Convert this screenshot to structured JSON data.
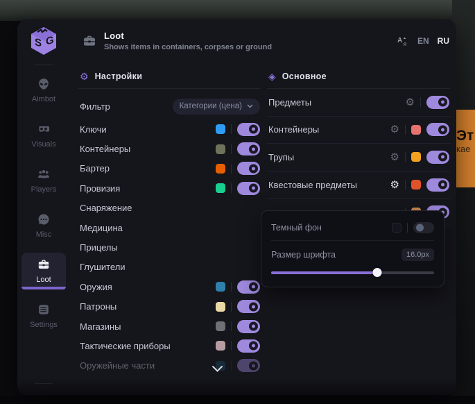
{
  "colors": {
    "accent": "#8d74da",
    "toggle_on": "#9e89dd",
    "panel_bg": "#15151c",
    "banner_orange": "#d8822d"
  },
  "scene": {
    "banner_line1": "Эт",
    "banner_line2": "кае"
  },
  "sidebar": {
    "items": [
      {
        "label": "Aimbot",
        "icon": "alien-icon",
        "active": false
      },
      {
        "label": "Visuals",
        "icon": "goggles-icon",
        "active": false
      },
      {
        "label": "Players",
        "icon": "people-icon",
        "active": false
      },
      {
        "label": "Misc",
        "icon": "chat-dots-icon",
        "active": false
      },
      {
        "label": "Loot",
        "icon": "briefcase-icon",
        "active": true
      },
      {
        "label": "Settings",
        "icon": "list-box-icon",
        "active": false
      }
    ]
  },
  "header": {
    "title": "Loot",
    "subtitle": "Shows items in containers, corpses or ground",
    "languages": [
      "EN",
      "RU"
    ],
    "active_language": "RU"
  },
  "left_panel": {
    "title": "Настройки",
    "filter_label": "Фильтр",
    "filter_value": "Категории (цена)",
    "rows": [
      {
        "label": "Ключи",
        "color": "#2f9cf3",
        "toggle": true
      },
      {
        "label": "Контейнеры",
        "color": "#6e7258",
        "toggle": true
      },
      {
        "label": "Бартер",
        "color": "#e55f00",
        "toggle": true
      },
      {
        "label": "Провизия",
        "color": "#17cf8f",
        "toggle": true
      },
      {
        "label": "Снаряжение",
        "color": null,
        "toggle": null
      },
      {
        "label": "Медицина",
        "color": null,
        "toggle": null
      },
      {
        "label": "Прицелы",
        "color": null,
        "toggle": null
      },
      {
        "label": "Глушители",
        "color": null,
        "toggle": null
      },
      {
        "label": "Оружия",
        "color": "#2f81ab",
        "toggle": true
      },
      {
        "label": "Патроны",
        "color": "#ead9a4",
        "toggle": true
      },
      {
        "label": "Магазины",
        "color": "#6f6f75",
        "toggle": true
      },
      {
        "label": "Тактические приборы",
        "color": "#b79aa2",
        "toggle": true
      },
      {
        "label": "Оружейные части",
        "color": "#1d4a63",
        "toggle": true,
        "faded": true
      }
    ]
  },
  "right_panel": {
    "title": "Основное",
    "rows": [
      {
        "label": "Предметы",
        "gear": true,
        "gear_bright": false,
        "color": null,
        "toggle": true
      },
      {
        "label": "Контейнеры",
        "gear": true,
        "gear_bright": false,
        "color": "#e6736d",
        "toggle": true
      },
      {
        "label": "Трупы",
        "gear": true,
        "gear_bright": false,
        "color": "#f2a21f",
        "toggle": true
      },
      {
        "label": "Квестовые предметы",
        "gear": true,
        "gear_bright": true,
        "color": "#e0522a",
        "toggle": true
      },
      {
        "label": "",
        "gear": null,
        "gear_bright": false,
        "color": "#cd8a50",
        "toggle": true
      }
    ]
  },
  "popup": {
    "dark_bg_label": "Темный фон",
    "dark_bg_on": false,
    "font_size_label": "Размер шрифта",
    "font_size_value": "16.0px",
    "slider_percent": 65
  },
  "icons": {
    "gear": "⚙",
    "diamond": "◈"
  }
}
